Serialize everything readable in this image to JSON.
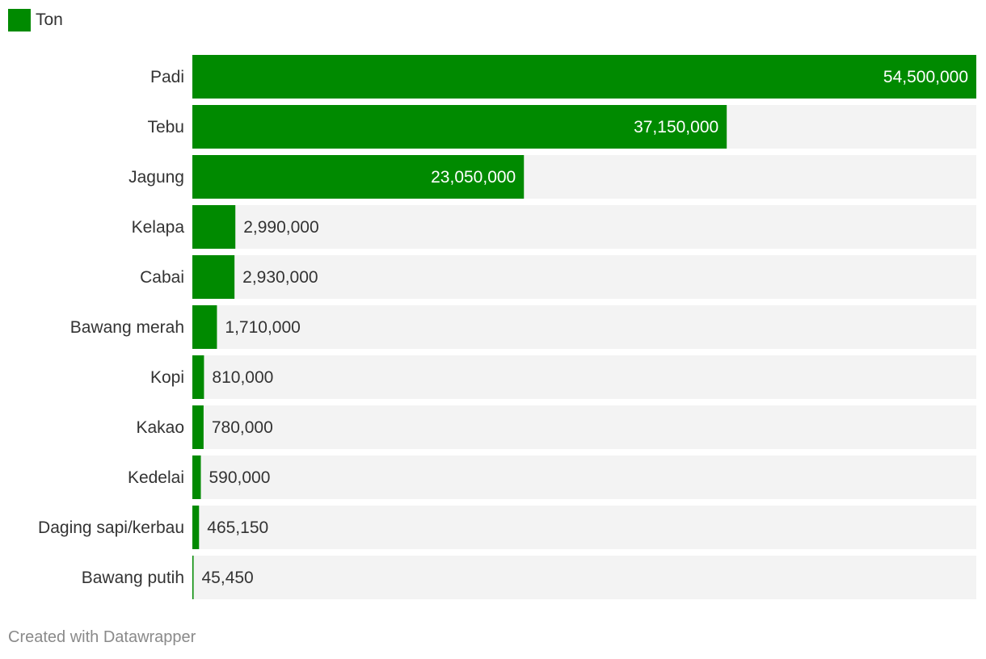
{
  "legend": {
    "label": "Ton",
    "color": "#008a00"
  },
  "footer": {
    "credit": "Created with Datawrapper"
  },
  "chart_data": {
    "type": "bar",
    "orientation": "horizontal",
    "categories": [
      "Padi",
      "Tebu",
      "Jagung",
      "Kelapa",
      "Cabai",
      "Bawang merah",
      "Kopi",
      "Kakao",
      "Kedelai",
      "Daging sapi/kerbau",
      "Bawang putih"
    ],
    "series": [
      {
        "name": "Ton",
        "values": [
          54500000,
          37150000,
          23050000,
          2990000,
          2930000,
          1710000,
          810000,
          780000,
          590000,
          465150,
          45450
        ]
      }
    ],
    "value_labels": [
      "54,500,000",
      "37,150,000",
      "23,050,000",
      "2,990,000",
      "2,930,000",
      "1,710,000",
      "810,000",
      "780,000",
      "590,000",
      "465,150",
      "45,450"
    ],
    "xlim": [
      0,
      54500000
    ],
    "grid": false,
    "legend_position": "top-left",
    "colors": {
      "bar": "#008a00",
      "track": "#f3f3f3",
      "label_inside": "#ffffff",
      "label_outside": "#333333"
    }
  }
}
